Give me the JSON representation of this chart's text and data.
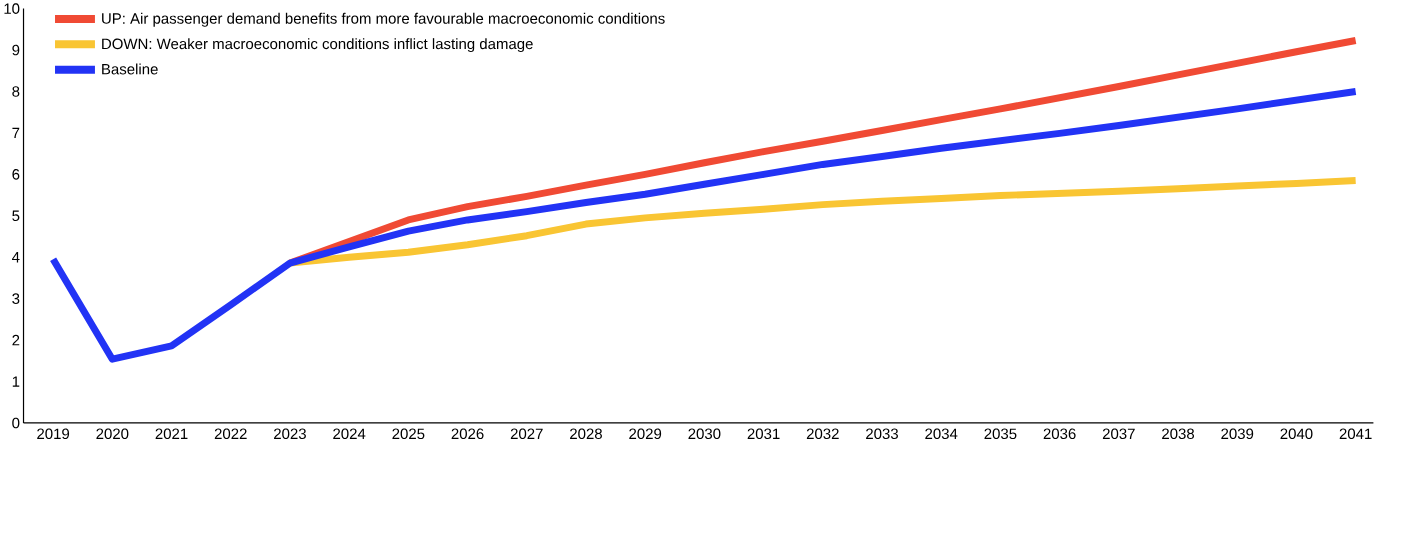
{
  "chart_data": {
    "type": "line",
    "categories": [
      "2019",
      "2020",
      "2021",
      "2022",
      "2023",
      "2024",
      "2025",
      "2026",
      "2027",
      "2028",
      "2029",
      "2030",
      "2031",
      "2032",
      "2033",
      "2034",
      "2035",
      "2036",
      "2037",
      "2038",
      "2039",
      "2040",
      "2041"
    ],
    "series": [
      {
        "name": "UP: Air passenger demand benefits from more favourable macroeconomic conditions",
        "color": "#f04a34",
        "values": [
          null,
          null,
          null,
          null,
          3.86,
          4.38,
          4.9,
          5.22,
          5.47,
          5.74,
          6.0,
          6.28,
          6.55,
          6.8,
          7.06,
          7.32,
          7.58,
          7.85,
          8.12,
          8.4,
          8.68,
          8.96,
          9.23
        ]
      },
      {
        "name": "DOWN: Weaker macroeconomic conditions inflict lasting damage",
        "color": "#f9c533",
        "values": [
          null,
          null,
          null,
          null,
          3.86,
          4.0,
          4.12,
          4.3,
          4.52,
          4.8,
          4.95,
          5.06,
          5.16,
          5.27,
          5.35,
          5.42,
          5.49,
          5.54,
          5.59,
          5.65,
          5.72,
          5.78,
          5.85
        ]
      },
      {
        "name": "Baseline",
        "color": "#2233f5",
        "values": [
          3.95,
          1.54,
          1.86,
          2.85,
          3.86,
          4.25,
          4.63,
          4.9,
          5.1,
          5.32,
          5.52,
          5.76,
          6.0,
          6.24,
          6.43,
          6.63,
          6.81,
          6.99,
          7.18,
          7.38,
          7.58,
          7.79,
          8.0
        ]
      }
    ],
    "ylim": [
      0,
      10
    ],
    "yticks": [
      0,
      1,
      2,
      3,
      4,
      5,
      6,
      7,
      8,
      9,
      10
    ],
    "grid": false,
    "legend": "top left",
    "marker": "none",
    "line_style": "solid"
  }
}
